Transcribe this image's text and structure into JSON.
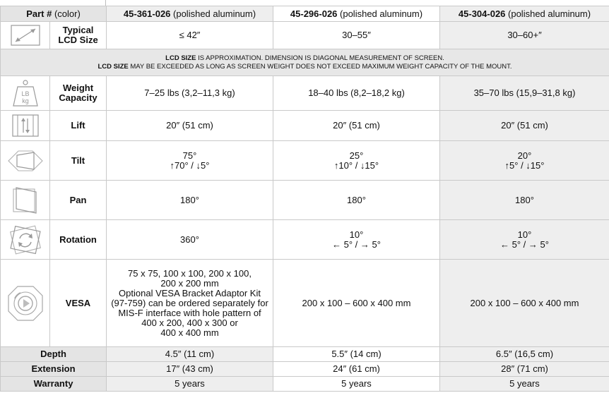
{
  "header": {
    "col0_bold": "Part #",
    "col0_rest": " (color)",
    "parts": [
      {
        "number": "45-361-026",
        "color": " (polished aluminum)"
      },
      {
        "number": "45-296-026",
        "color": " (polished aluminum)"
      },
      {
        "number": "45-304-026",
        "color": " (polished aluminum)"
      }
    ]
  },
  "note": {
    "line1_bold": "LCD SIZE",
    "line1_rest": " IS APPROXIMATION. DIMENSION IS DIAGONAL MEASUREMENT OF SCREEN.",
    "line2_bold": "LCD SIZE",
    "line2_rest": " MAY BE EXCEEDED AS LONG AS SCREEN WEIGHT DOES NOT EXCEED MAXIMUM WEIGHT CAPACITY OF THE MOUNT."
  },
  "rows": {
    "lcd": {
      "label_line1": "Typical",
      "label_line2": "LCD Size",
      "icon": "diagonal-arrow-icon",
      "values": [
        "≤ 42″",
        "30–55″",
        "30–60+″"
      ]
    },
    "weight": {
      "label_line1": "Weight",
      "label_line2": "Capacity",
      "icon": "weight-icon",
      "icon_text1": "LB",
      "icon_text2": "kg",
      "values": [
        "7–25 lbs (3,2–11,3 kg)",
        "18–40 lbs (8,2–18,2 kg)",
        "35–70 lbs (15,9–31,8 kg)"
      ]
    },
    "lift": {
      "label": "Lift",
      "icon": "lift-icon",
      "values": [
        "20″ (51 cm)",
        "20″ (51 cm)",
        "20″ (51 cm)"
      ]
    },
    "tilt": {
      "label": "Tilt",
      "icon": "tilt-icon",
      "values": [
        {
          "line1": "75°",
          "line2": "↑70° / ↓5°"
        },
        {
          "line1": "25°",
          "line2": "↑10° / ↓15°"
        },
        {
          "line1": "20°",
          "line2": "↑5° / ↓15°"
        }
      ]
    },
    "pan": {
      "label": "Pan",
      "icon": "pan-icon",
      "values": [
        "180°",
        "180°",
        "180°"
      ]
    },
    "rotation": {
      "label": "Rotation",
      "icon": "rotation-icon",
      "values": [
        {
          "line1": "360°",
          "line2": ""
        },
        {
          "line1": "10°",
          "line2": "← 5° / → 5°"
        },
        {
          "line1": "10°",
          "line2": "← 5° / → 5°"
        }
      ]
    },
    "vesa": {
      "label": "VESA",
      "icon": "vesa-icon",
      "col1_lines": [
        "75 x 75, 100 x 100, 200 x 100,",
        "200 x 200 mm",
        "Optional VESA Bracket Adaptor Kit",
        "(97-759) can be ordered separately for",
        "MIS-F interface with hole pattern of",
        "400 x 200, 400 x 300 or",
        "400 x 400 mm"
      ],
      "col2": "200 x 100 – 600 x 400 mm",
      "col3": "200 x 100 – 600 x 400 mm"
    },
    "depth": {
      "label": "Depth",
      "values": [
        "4.5″ (11 cm)",
        "5.5″ (14 cm)",
        "6.5″ (16,5 cm)"
      ]
    },
    "extension": {
      "label": "Extension",
      "values": [
        "17″ (43 cm)",
        "24″ (61 cm)",
        "28″ (71 cm)"
      ]
    },
    "warranty": {
      "label": "Warranty",
      "values": [
        "5 years",
        "5 years",
        "5 years"
      ]
    }
  }
}
